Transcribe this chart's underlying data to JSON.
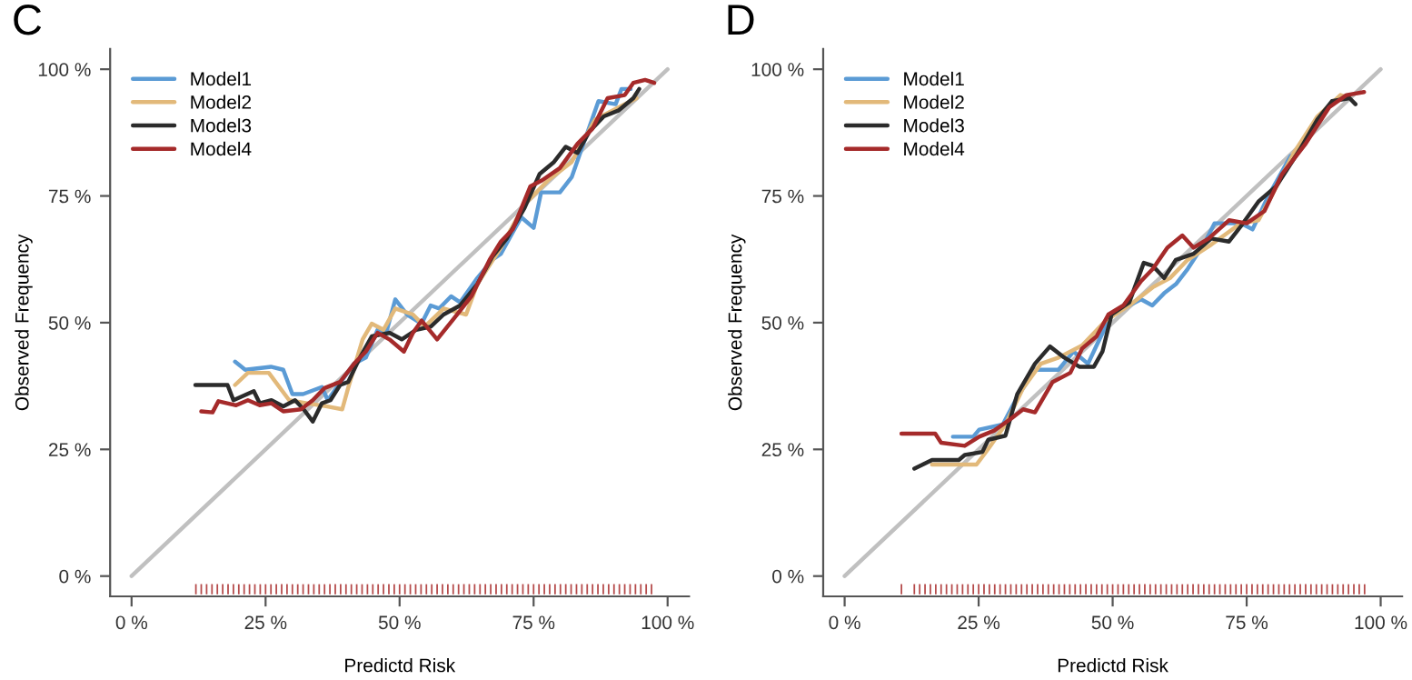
{
  "chart_data": [
    {
      "type": "line",
      "title": "C",
      "xlabel": "Predictd Risk",
      "ylabel": "Observed Frequency",
      "xlim": [
        -4,
        104
      ],
      "ylim": [
        -4,
        104
      ],
      "grid": false,
      "legend": "top left",
      "xticks": [
        {
          "value": 0,
          "label": "0 %"
        },
        {
          "value": 25,
          "label": "25 %"
        },
        {
          "value": 50,
          "label": "50 %"
        },
        {
          "value": 75,
          "label": "75 %"
        },
        {
          "value": 100,
          "label": "100 %"
        }
      ],
      "yticks": [
        {
          "value": 0,
          "label": "0 %"
        },
        {
          "value": 25,
          "label": "25 %"
        },
        {
          "value": 50,
          "label": "50 %"
        },
        {
          "value": 75,
          "label": "75 %"
        },
        {
          "value": 100,
          "label": "100 %"
        }
      ],
      "series": [
        {
          "type": "line",
          "color": "#c0c0c0",
          "x": [
            0,
            100
          ],
          "values": [
            0,
            100
          ]
        },
        {
          "type": "bar",
          "x": [
            12,
            13,
            14,
            15,
            16,
            17,
            18,
            19,
            20,
            21,
            22,
            23,
            24,
            25,
            26,
            27,
            28,
            29,
            30,
            31,
            32,
            33,
            34,
            35,
            36,
            37,
            38,
            39,
            40,
            41,
            42,
            43,
            44,
            45,
            46,
            47,
            48,
            49,
            50,
            51,
            52,
            53,
            54,
            55,
            56,
            57,
            58,
            59,
            60,
            61,
            62,
            63,
            64,
            65,
            66,
            67,
            68,
            69,
            70,
            71,
            72,
            73,
            74,
            75,
            76,
            77,
            78,
            79,
            80,
            81,
            82,
            83,
            84,
            85,
            86,
            87,
            88,
            89,
            90,
            91,
            92,
            93,
            94,
            95,
            96,
            97
          ],
          "values": [
            2,
            2,
            2,
            2,
            2,
            2,
            2,
            2,
            2,
            2,
            2,
            2,
            2,
            2,
            2,
            2,
            2,
            2,
            2,
            2,
            2,
            2,
            2,
            2,
            2,
            2,
            2,
            2,
            2,
            2,
            2,
            2,
            2,
            2,
            2,
            2,
            2,
            2,
            2,
            2,
            2,
            2,
            2,
            2,
            2,
            2,
            2,
            2,
            2,
            2,
            2,
            2,
            2,
            2,
            2,
            2,
            2,
            2,
            2,
            2,
            2,
            2,
            2,
            2,
            2,
            2,
            2,
            2,
            2,
            2,
            2,
            2,
            2,
            2,
            2,
            2,
            2,
            2,
            2,
            2,
            2,
            2,
            2,
            2,
            2,
            2
          ],
          "base": [
            -3.6,
            -3.6,
            -3.6,
            -3.6,
            -3.6,
            -3.6,
            -3.6,
            -3.6,
            -3.6,
            -3.6,
            -3.6,
            -3.6,
            -3.6,
            -3.6,
            -3.6,
            -3.6,
            -3.6,
            -3.6,
            -3.6,
            -3.6,
            -3.6,
            -3.6,
            -3.6,
            -3.6,
            -3.6,
            -3.6,
            -3.6,
            -3.6,
            -3.6,
            -3.6,
            -3.6,
            -3.6,
            -3.6,
            -3.6,
            -3.6,
            -3.6,
            -3.6,
            -3.6,
            -3.6,
            -3.6,
            -3.6,
            -3.6,
            -3.6,
            -3.6,
            -3.6,
            -3.6,
            -3.6,
            -3.6,
            -3.6,
            -3.6,
            -3.6,
            -3.6,
            -3.6,
            -3.6,
            -3.6,
            -3.6,
            -3.6,
            -3.6,
            -3.6,
            -3.6,
            -3.6,
            -3.6,
            -3.6,
            -3.6,
            -3.6,
            -3.6,
            -3.6,
            -3.6,
            -3.6,
            -3.6,
            -3.6,
            -3.6,
            -3.6,
            -3.6,
            -3.6,
            -3.6,
            -3.6,
            -3.6,
            -3.6,
            -3.6,
            -3.6,
            -3.6,
            -3.6,
            -3.6,
            -3.6,
            -3.6
          ],
          "color": "#b54a4a"
        },
        {
          "name": "Model1",
          "color": "#5b9bd5",
          "x": [
            19.3,
            21.2,
            26,
            28.3,
            30,
            32,
            35.5,
            36.6,
            38.2,
            41.5,
            43.7,
            45.9,
            47.5,
            49.2,
            51.4,
            54.1,
            55.8,
            57.4,
            59.6,
            61.3,
            64.5,
            67.3,
            68.9,
            71.1,
            72.7,
            75,
            76.4,
            79.9,
            82.1,
            84.3,
            87.1,
            90.3,
            91.4,
            93.1
          ],
          "values": [
            42.3,
            40.7,
            41.3,
            40.7,
            35.9,
            35.9,
            37.3,
            34.7,
            37.1,
            41.9,
            43.1,
            48.6,
            48,
            54.6,
            51.6,
            49.8,
            53.4,
            52.8,
            55.2,
            54,
            58.8,
            62.4,
            63.6,
            67.8,
            70.8,
            68.7,
            75.7,
            75.7,
            78.7,
            85.3,
            93.7,
            93.1,
            96.1,
            96.1
          ]
        },
        {
          "name": "Model2",
          "color": "#e2b97a",
          "x": [
            19.3,
            21.7,
            25.6,
            29.4,
            32.7,
            36.3,
            39.3,
            40.4,
            43.1,
            44.8,
            47,
            49.2,
            52.5,
            54.7,
            58.2,
            62.4,
            64.5,
            68.9,
            73.3,
            77.7,
            82.1,
            86.5,
            90.9,
            94.2
          ],
          "values": [
            37.7,
            40.1,
            40.1,
            34.7,
            34.1,
            33.5,
            32.9,
            37.1,
            46.7,
            49.8,
            48.6,
            52.8,
            51.6,
            49.2,
            52.8,
            51.6,
            57.6,
            64.8,
            73.3,
            78.1,
            81.7,
            90.1,
            92.5,
            94.3
          ]
        },
        {
          "name": "Model3",
          "color": "#2b2b2b",
          "x": [
            11.9,
            17.9,
            19,
            22.8,
            23.9,
            26.1,
            28.3,
            30.5,
            32.1,
            33.8,
            35.5,
            37.1,
            38.9,
            40.4,
            42.6,
            44.8,
            48.1,
            50.4,
            53.1,
            55.8,
            58.2,
            61.3,
            64.5,
            67.3,
            70,
            73.3,
            76.1,
            78.8,
            81,
            83.2,
            85.4,
            88.1,
            90.9,
            93.6,
            94.7
          ],
          "values": [
            37.7,
            37.7,
            34.7,
            36.5,
            34.1,
            34.7,
            33.5,
            34.7,
            32.9,
            30.5,
            34.1,
            34.7,
            37.7,
            38.3,
            43.1,
            47.3,
            48,
            46.7,
            48.6,
            49.2,
            51.6,
            53.4,
            57.6,
            63,
            66.6,
            72.6,
            79.3,
            81.7,
            84.7,
            83.5,
            87.7,
            90.7,
            91.9,
            94.3,
            96.1
          ]
        },
        {
          "name": "Model4",
          "color": "#a52a2a",
          "x": [
            13,
            15.1,
            16.2,
            19.5,
            21.7,
            23.9,
            26.1,
            28.3,
            31.6,
            33.8,
            36,
            38.9,
            41.5,
            43.7,
            45.9,
            48.1,
            50.8,
            52.5,
            54.1,
            57,
            60.2,
            63.4,
            66.8,
            68.9,
            71.1,
            74.4,
            76.6,
            79.9,
            83.2,
            86,
            88.8,
            92,
            93.6,
            95.8,
            97.5
          ],
          "values": [
            32.5,
            32.3,
            34.5,
            33.7,
            34.7,
            33.7,
            34.1,
            32.5,
            32.9,
            34.7,
            37.1,
            38.3,
            41.9,
            44.3,
            48,
            46.7,
            44.3,
            48,
            50.4,
            46.7,
            50.9,
            55.2,
            62.4,
            66,
            68.4,
            76.9,
            78.1,
            80.5,
            85.3,
            88.3,
            94.3,
            94.9,
            97.3,
            97.9,
            97.3
          ]
        }
      ]
    },
    {
      "type": "line",
      "title": "D",
      "xlabel": "Predictd Risk",
      "ylabel": "Observed Frequency",
      "xlim": [
        -4,
        104
      ],
      "ylim": [
        -4,
        104
      ],
      "grid": false,
      "legend": "top left",
      "xticks": [
        {
          "value": 0,
          "label": "0 %"
        },
        {
          "value": 25,
          "label": "25 %"
        },
        {
          "value": 50,
          "label": "50 %"
        },
        {
          "value": 75,
          "label": "75 %"
        },
        {
          "value": 100,
          "label": "100 %"
        }
      ],
      "yticks": [
        {
          "value": 0,
          "label": "0 %"
        },
        {
          "value": 25,
          "label": "25 %"
        },
        {
          "value": 50,
          "label": "50 %"
        },
        {
          "value": 75,
          "label": "75 %"
        },
        {
          "value": 100,
          "label": "100 %"
        }
      ],
      "series": [
        {
          "type": "line",
          "color": "#c0c0c0",
          "x": [
            0,
            100
          ],
          "values": [
            0,
            100
          ]
        },
        {
          "type": "bar",
          "x": [
            10.6,
            13,
            14,
            15,
            16,
            17,
            18,
            19,
            20,
            21,
            22,
            23,
            24,
            25,
            26,
            27,
            28,
            29,
            30,
            31,
            32,
            33,
            34,
            35,
            36,
            37,
            38,
            39,
            40,
            41,
            42,
            43,
            44,
            45,
            46,
            47,
            48,
            49,
            50,
            51,
            52,
            53,
            54,
            55,
            56,
            57,
            58,
            59,
            60,
            61,
            62,
            63,
            64,
            65,
            66,
            67,
            68,
            69,
            70,
            71,
            72,
            73,
            74,
            75,
            76,
            77,
            78,
            79,
            80,
            81,
            82,
            83,
            84,
            85,
            86,
            87,
            88,
            89,
            90,
            91,
            92,
            93,
            94,
            95,
            96,
            97
          ],
          "values": [
            2,
            2,
            2,
            2,
            2,
            2,
            2,
            2,
            2,
            2,
            2,
            2,
            2,
            2,
            2,
            2,
            2,
            2,
            2,
            2,
            2,
            2,
            2,
            2,
            2,
            2,
            2,
            2,
            2,
            2,
            2,
            2,
            2,
            2,
            2,
            2,
            2,
            2,
            2,
            2,
            2,
            2,
            2,
            2,
            2,
            2,
            2,
            2,
            2,
            2,
            2,
            2,
            2,
            2,
            2,
            2,
            2,
            2,
            2,
            2,
            2,
            2,
            2,
            2,
            2,
            2,
            2,
            2,
            2,
            2,
            2,
            2,
            2,
            2,
            2,
            2,
            2,
            2,
            2,
            2,
            2,
            2,
            2,
            2,
            2,
            2
          ],
          "base": [
            -3.6,
            -3.6,
            -3.6,
            -3.6,
            -3.6,
            -3.6,
            -3.6,
            -3.6,
            -3.6,
            -3.6,
            -3.6,
            -3.6,
            -3.6,
            -3.6,
            -3.6,
            -3.6,
            -3.6,
            -3.6,
            -3.6,
            -3.6,
            -3.6,
            -3.6,
            -3.6,
            -3.6,
            -3.6,
            -3.6,
            -3.6,
            -3.6,
            -3.6,
            -3.6,
            -3.6,
            -3.6,
            -3.6,
            -3.6,
            -3.6,
            -3.6,
            -3.6,
            -3.6,
            -3.6,
            -3.6,
            -3.6,
            -3.6,
            -3.6,
            -3.6,
            -3.6,
            -3.6,
            -3.6,
            -3.6,
            -3.6,
            -3.6,
            -3.6,
            -3.6,
            -3.6,
            -3.6,
            -3.6,
            -3.6,
            -3.6,
            -3.6,
            -3.6,
            -3.6,
            -3.6,
            -3.6,
            -3.6,
            -3.6,
            -3.6,
            -3.6,
            -3.6,
            -3.6,
            -3.6,
            -3.6,
            -3.6,
            -3.6,
            -3.6,
            -3.6,
            -3.6,
            -3.6,
            -3.6,
            -3.6,
            -3.6,
            -3.6,
            -3.6,
            -3.6,
            -3.6,
            -3.6,
            -3.6,
            -3.6
          ],
          "color": "#b54a4a"
        },
        {
          "name": "Model1",
          "color": "#5b9bd5",
          "x": [
            20.2,
            24,
            25.1,
            29.5,
            32.2,
            35.5,
            39.9,
            42.7,
            45.4,
            47,
            49.8,
            52,
            55.3,
            57.4,
            59.6,
            61.8,
            64,
            67.3,
            69,
            73.9,
            76.1,
            78.8,
            83.2
          ],
          "values": [
            27.5,
            27.5,
            28.9,
            29.9,
            35.3,
            40.7,
            40.7,
            44.3,
            41.9,
            45.5,
            51.6,
            52.8,
            54.6,
            53.4,
            55.8,
            57.6,
            60.6,
            66,
            69.6,
            69.6,
            68.4,
            74.5,
            82.9
          ]
        },
        {
          "name": "Model2",
          "color": "#e2b97a",
          "x": [
            16.3,
            24.6,
            26.8,
            30,
            33.3,
            36.6,
            39.9,
            44.3,
            48.7,
            53.1,
            57.5,
            60.7,
            64,
            68.4,
            73.9,
            77.2,
            79.4,
            83.8,
            88.2,
            92.5,
            94.2
          ],
          "values": [
            22,
            22,
            25.1,
            29.9,
            37.1,
            41.9,
            43.1,
            45.5,
            50.4,
            53.4,
            57,
            58.8,
            62.4,
            65.4,
            69.6,
            70.2,
            74.5,
            83.5,
            90.7,
            94.9,
            94.3
          ]
        },
        {
          "name": "Model3",
          "color": "#2b2b2b",
          "x": [
            13,
            16.3,
            21.3,
            22.4,
            25.7,
            26.8,
            30,
            32.2,
            35.5,
            38.3,
            41,
            43.8,
            46.5,
            48.1,
            49.8,
            53.1,
            55.8,
            57.5,
            59.6,
            61.8,
            65.1,
            68.4,
            71.7,
            73.9,
            77.2,
            80.5,
            84.9,
            88.2,
            90.9,
            94.2,
            95.3
          ],
          "values": [
            21.2,
            22.9,
            22.9,
            23.9,
            24.5,
            26.9,
            27.7,
            35.9,
            41.9,
            45.3,
            43.1,
            41.3,
            41.3,
            44.3,
            51.6,
            54,
            61.8,
            61.2,
            58.8,
            62.4,
            63.6,
            66.6,
            66,
            69,
            73.9,
            76.9,
            84.1,
            90.1,
            93.7,
            94.3,
            93.1
          ]
        },
        {
          "name": "Model4",
          "color": "#a52a2a",
          "x": [
            10.6,
            16.9,
            18,
            22.4,
            25.1,
            27.9,
            31.1,
            33.3,
            35.5,
            38.8,
            42.1,
            44.3,
            47,
            49.2,
            52,
            55.3,
            57.5,
            60.2,
            63,
            65.1,
            67.9,
            71.7,
            75,
            78.3,
            81.6,
            86,
            90.4,
            93.6,
            96.9
          ],
          "values": [
            28.1,
            28.1,
            26.3,
            25.7,
            27.5,
            28.7,
            31.1,
            32.9,
            32.3,
            38.3,
            40.1,
            44.9,
            47.3,
            51.6,
            53.4,
            58.2,
            60.6,
            64.8,
            67.2,
            64.8,
            66.6,
            70.2,
            69.6,
            72,
            79.3,
            85.3,
            92.5,
            94.9,
            95.5
          ]
        }
      ]
    }
  ]
}
